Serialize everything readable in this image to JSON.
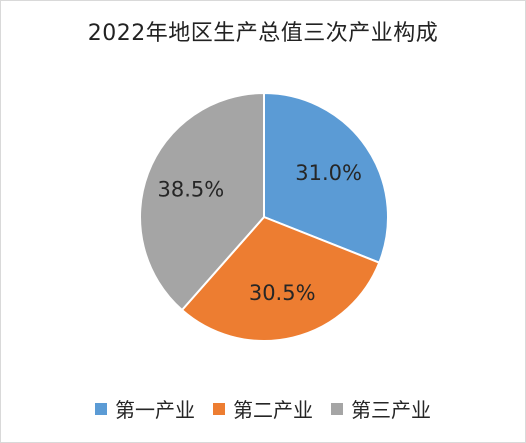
{
  "chart_data": {
    "type": "pie",
    "title": "2022年地区生产总值三次产业构成",
    "legend_position": "bottom",
    "categories": [
      "第一产业",
      "第二产业",
      "第三产业"
    ],
    "values": [
      31.0,
      30.5,
      38.5
    ],
    "labels": [
      "31.0%",
      "30.5%",
      "38.5%"
    ],
    "colors": [
      "#5b9bd5",
      "#ed7d31",
      "#a5a5a5"
    ],
    "start_angle_deg": 0,
    "direction": "clockwise"
  }
}
